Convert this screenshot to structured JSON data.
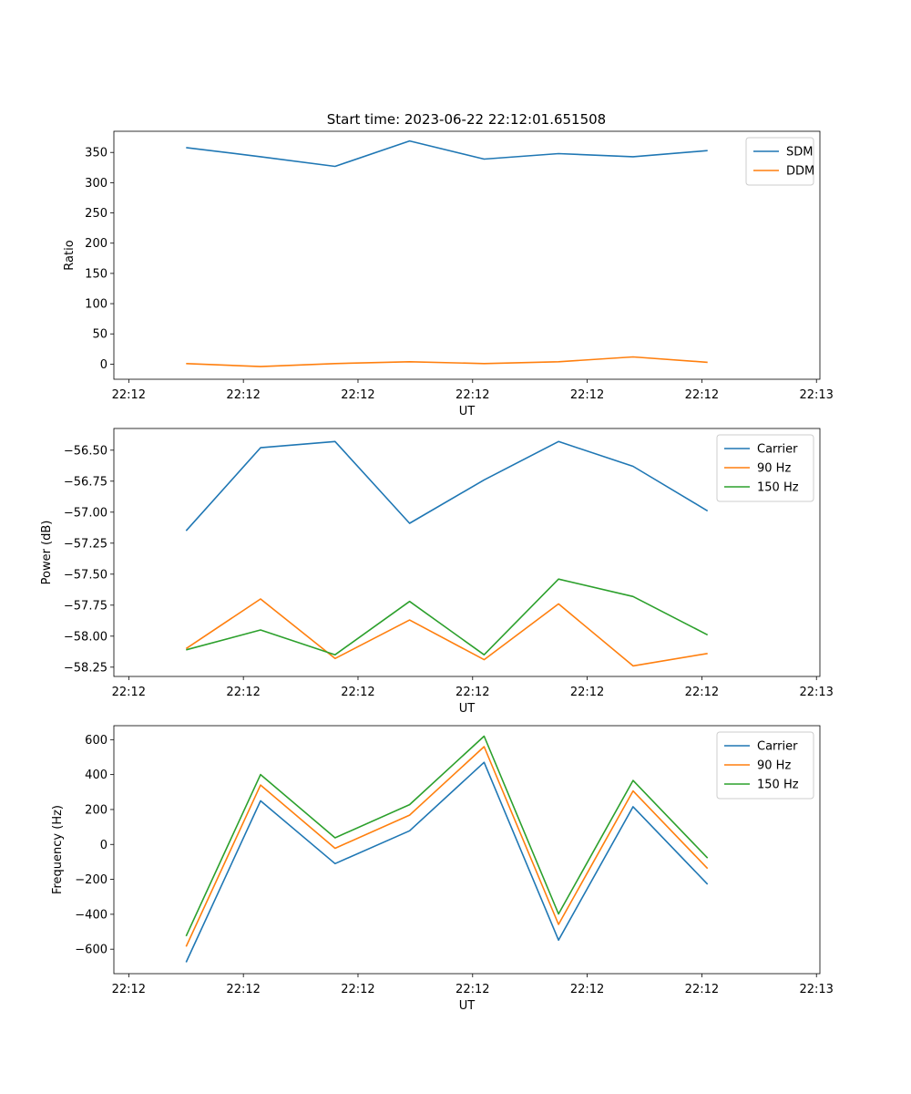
{
  "figure": {
    "title": "Start time: 2023-06-22 22:12:01.651508"
  },
  "x_axis": {
    "label": "UT",
    "tick_labels": [
      "22:12",
      "22:12",
      "22:12",
      "22:12",
      "22:12",
      "22:12",
      "22:13"
    ]
  },
  "chart_data": [
    {
      "type": "line",
      "title": "Start time: 2023-06-22 22:12:01.651508",
      "xlabel": "UT",
      "ylabel": "Ratio",
      "ylim": [
        -25,
        385
      ],
      "yticks": [
        0,
        50,
        100,
        150,
        200,
        250,
        300,
        350
      ],
      "ytick_labels": [
        "0",
        "50",
        "100",
        "150",
        "200",
        "250",
        "300",
        "350"
      ],
      "x": [
        0.5,
        1.15,
        1.8,
        2.45,
        3.1,
        3.75,
        4.4,
        5.05
      ],
      "xlim": [
        -0.13,
        6.03
      ],
      "xticks": [
        0,
        1,
        2,
        3,
        4,
        5,
        6
      ],
      "legend": "upper right",
      "grid": false,
      "series": [
        {
          "name": "SDM",
          "color": "#1f77b4",
          "values": [
            358,
            343,
            327,
            369,
            339,
            348,
            343,
            353
          ]
        },
        {
          "name": "DDM",
          "color": "#ff7f0e",
          "values": [
            1,
            -4,
            1,
            4,
            1,
            4,
            12,
            3
          ]
        }
      ]
    },
    {
      "type": "line",
      "title": "",
      "xlabel": "UT",
      "ylabel": "Power (dB)",
      "ylim": [
        -58.325,
        -56.325
      ],
      "yticks": [
        -58.25,
        -58.0,
        -57.75,
        -57.5,
        -57.25,
        -57.0,
        -56.75,
        -56.5
      ],
      "ytick_labels": [
        "−58.25",
        "−58.00",
        "−57.75",
        "−57.50",
        "−57.25",
        "−57.00",
        "−56.75",
        "−56.50"
      ],
      "x": [
        0.5,
        1.15,
        1.8,
        2.45,
        3.1,
        3.75,
        4.4,
        5.05
      ],
      "xlim": [
        -0.13,
        6.03
      ],
      "xticks": [
        0,
        1,
        2,
        3,
        4,
        5,
        6
      ],
      "legend": "upper right",
      "grid": false,
      "series": [
        {
          "name": "Carrier",
          "color": "#1f77b4",
          "values": [
            -57.15,
            -56.48,
            -56.43,
            -57.09,
            -56.74,
            -56.43,
            -56.63,
            -56.99
          ]
        },
        {
          "name": "90 Hz",
          "color": "#ff7f0e",
          "values": [
            -58.1,
            -57.7,
            -58.18,
            -57.87,
            -58.19,
            -57.74,
            -58.24,
            -58.14
          ]
        },
        {
          "name": "150 Hz",
          "color": "#2ca02c",
          "values": [
            -58.11,
            -57.95,
            -58.15,
            -57.72,
            -58.15,
            -57.54,
            -57.68,
            -57.99
          ]
        }
      ]
    },
    {
      "type": "line",
      "title": "",
      "xlabel": "UT",
      "ylabel": "Frequency (Hz)",
      "ylim": [
        -740,
        680
      ],
      "yticks": [
        -600,
        -400,
        -200,
        0,
        200,
        400,
        600
      ],
      "ytick_labels": [
        "−600",
        "−400",
        "−200",
        "0",
        "200",
        "400",
        "600"
      ],
      "x": [
        0.5,
        1.15,
        1.8,
        2.45,
        3.1,
        3.75,
        4.4,
        5.05
      ],
      "xlim": [
        -0.13,
        6.03
      ],
      "xticks": [
        0,
        1,
        2,
        3,
        4,
        5,
        6
      ],
      "legend": "upper right",
      "grid": false,
      "series": [
        {
          "name": "Carrier",
          "color": "#1f77b4",
          "values": [
            -675,
            250,
            -110,
            78,
            470,
            -548,
            216,
            -228
          ]
        },
        {
          "name": "90 Hz",
          "color": "#ff7f0e",
          "values": [
            -585,
            340,
            -22,
            168,
            560,
            -458,
            306,
            -138
          ]
        },
        {
          "name": "150 Hz",
          "color": "#2ca02c",
          "values": [
            -525,
            400,
            38,
            228,
            620,
            -398,
            366,
            -78
          ]
        }
      ]
    }
  ]
}
